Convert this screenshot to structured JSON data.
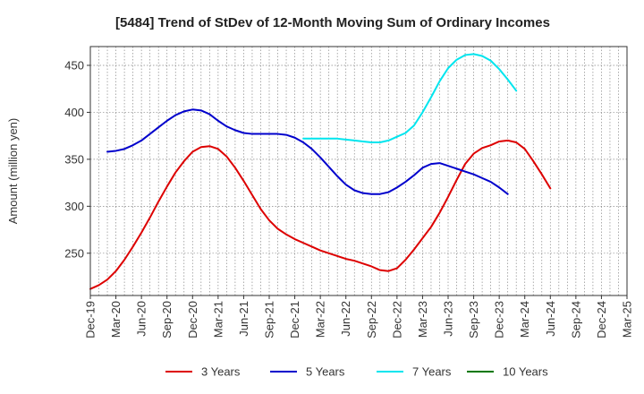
{
  "chart_data": {
    "type": "line",
    "title": "[5484]  Trend of StDev of 12-Month Moving Sum of Ordinary Incomes",
    "xlabel": "",
    "ylabel": "Amount (million yen)",
    "ylim": [
      205,
      470
    ],
    "yticks": [
      250,
      300,
      350,
      400,
      450
    ],
    "x_tick_labels": [
      "Dec-19",
      "Mar-20",
      "Jun-20",
      "Sep-20",
      "Dec-20",
      "Mar-21",
      "Jun-21",
      "Sep-21",
      "Dec-21",
      "Mar-22",
      "Jun-22",
      "Sep-22",
      "Dec-22",
      "Mar-23",
      "Jun-23",
      "Sep-23",
      "Dec-23",
      "Mar-24",
      "Jun-24",
      "Sep-24",
      "Dec-24",
      "Mar-25"
    ],
    "grid": true,
    "legend_position": "bottom",
    "series": [
      {
        "name": "3 Years",
        "color": "#dd0000",
        "start_index": 0,
        "values": [
          212,
          216,
          222,
          231,
          243,
          257,
          272,
          288,
          305,
          321,
          336,
          348,
          358,
          363,
          364,
          361,
          353,
          341,
          327,
          312,
          297,
          285,
          276,
          270,
          265,
          261,
          257,
          253,
          250,
          247,
          244,
          242,
          239,
          236,
          232,
          231,
          234,
          243,
          254,
          266,
          278,
          293,
          310,
          328,
          345,
          356,
          362,
          365,
          369,
          370,
          368,
          361,
          348,
          334,
          319
        ]
      },
      {
        "name": "5 Years",
        "color": "#0000cc",
        "start_index": 2,
        "values": [
          358,
          359,
          361,
          365,
          370,
          377,
          384,
          391,
          397,
          401,
          403,
          402,
          398,
          391,
          385,
          381,
          378,
          377,
          377,
          377,
          377,
          376,
          373,
          368,
          361,
          352,
          342,
          332,
          323,
          317,
          314,
          313,
          313,
          315,
          320,
          326,
          333,
          341,
          345,
          346,
          343,
          340,
          337,
          334,
          330,
          326,
          320,
          313
        ]
      },
      {
        "name": "7 Years",
        "color": "#00e5ee",
        "start_index": 25,
        "values": [
          372,
          372,
          372,
          372,
          372,
          371,
          370,
          369,
          368,
          368,
          370,
          374,
          378,
          386,
          400,
          416,
          433,
          447,
          456,
          461,
          462,
          460,
          455,
          446,
          435,
          423
        ]
      },
      {
        "name": "10 Years",
        "color": "#007700",
        "start_index": 0,
        "values": []
      }
    ]
  }
}
